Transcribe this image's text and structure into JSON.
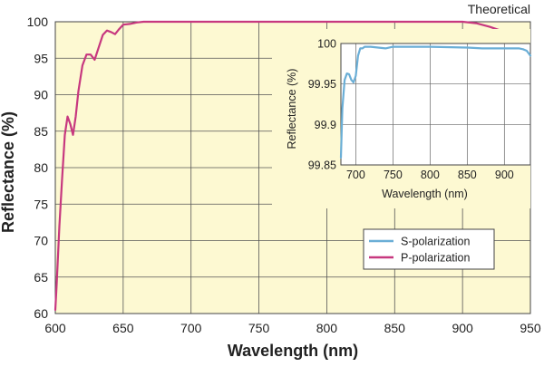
{
  "chart_data": [
    {
      "type": "line",
      "role": "main",
      "note": "Theoretical",
      "xlabel": "Wavelength (nm)",
      "ylabel": "Reflectance (%)",
      "xlim": [
        600,
        950
      ],
      "ylim": [
        60,
        100
      ],
      "xticks": [
        600,
        650,
        700,
        750,
        800,
        850,
        900,
        950
      ],
      "yticks": [
        60,
        65,
        70,
        75,
        80,
        85,
        90,
        95,
        100
      ],
      "grid": true,
      "legend_position": "lower-right",
      "series": [
        {
          "name": "S-polarization",
          "color": "#6aaed6",
          "x": [],
          "y": []
        },
        {
          "name": "P-polarization",
          "color": "#c7387f",
          "x": [
            600,
            601,
            603,
            605,
            607,
            609,
            611,
            613,
            615,
            617,
            620,
            623,
            626,
            629,
            632,
            635,
            638,
            641,
            644,
            647,
            650,
            655,
            660,
            665,
            670,
            680,
            700,
            750,
            800,
            850,
            900,
            910,
            920,
            928
          ],
          "y": [
            60.5,
            64,
            72,
            78.5,
            84.5,
            87,
            86,
            84.5,
            87,
            90.5,
            94,
            95.5,
            95.5,
            94.8,
            96.5,
            98.2,
            98.8,
            98.6,
            98.3,
            99,
            99.6,
            99.7,
            99.9,
            100,
            100,
            100,
            100,
            100,
            100,
            100,
            100,
            99.8,
            99.3,
            98.8
          ]
        }
      ]
    },
    {
      "type": "line",
      "role": "inset",
      "xlabel": "Wavelength (nm)",
      "ylabel": "Reflectance (%)",
      "xlim": [
        680,
        935
      ],
      "ylim": [
        99.85,
        100
      ],
      "xticks": [
        700,
        750,
        800,
        850,
        900
      ],
      "yticks": [
        99.85,
        99.9,
        99.95,
        100
      ],
      "ytick_labels": [
        "99.85",
        "99.9",
        "99.95",
        "100"
      ],
      "grid": true,
      "series": [
        {
          "name": "S-polarization",
          "color": "#6aaed6",
          "x": [
            680,
            682,
            685,
            688,
            691,
            694,
            697,
            700,
            703,
            706,
            709,
            712,
            716,
            720,
            730,
            740,
            750,
            760,
            800,
            850,
            870,
            900,
            920,
            925,
            930,
            935
          ],
          "y": [
            99.859,
            99.92,
            99.955,
            99.963,
            99.962,
            99.955,
            99.952,
            99.96,
            99.985,
            99.994,
            99.994,
            99.996,
            99.996,
            99.996,
            99.995,
            99.994,
            99.996,
            99.996,
            99.996,
            99.995,
            99.994,
            99.994,
            99.994,
            99.993,
            99.991,
            99.985
          ]
        }
      ]
    }
  ]
}
